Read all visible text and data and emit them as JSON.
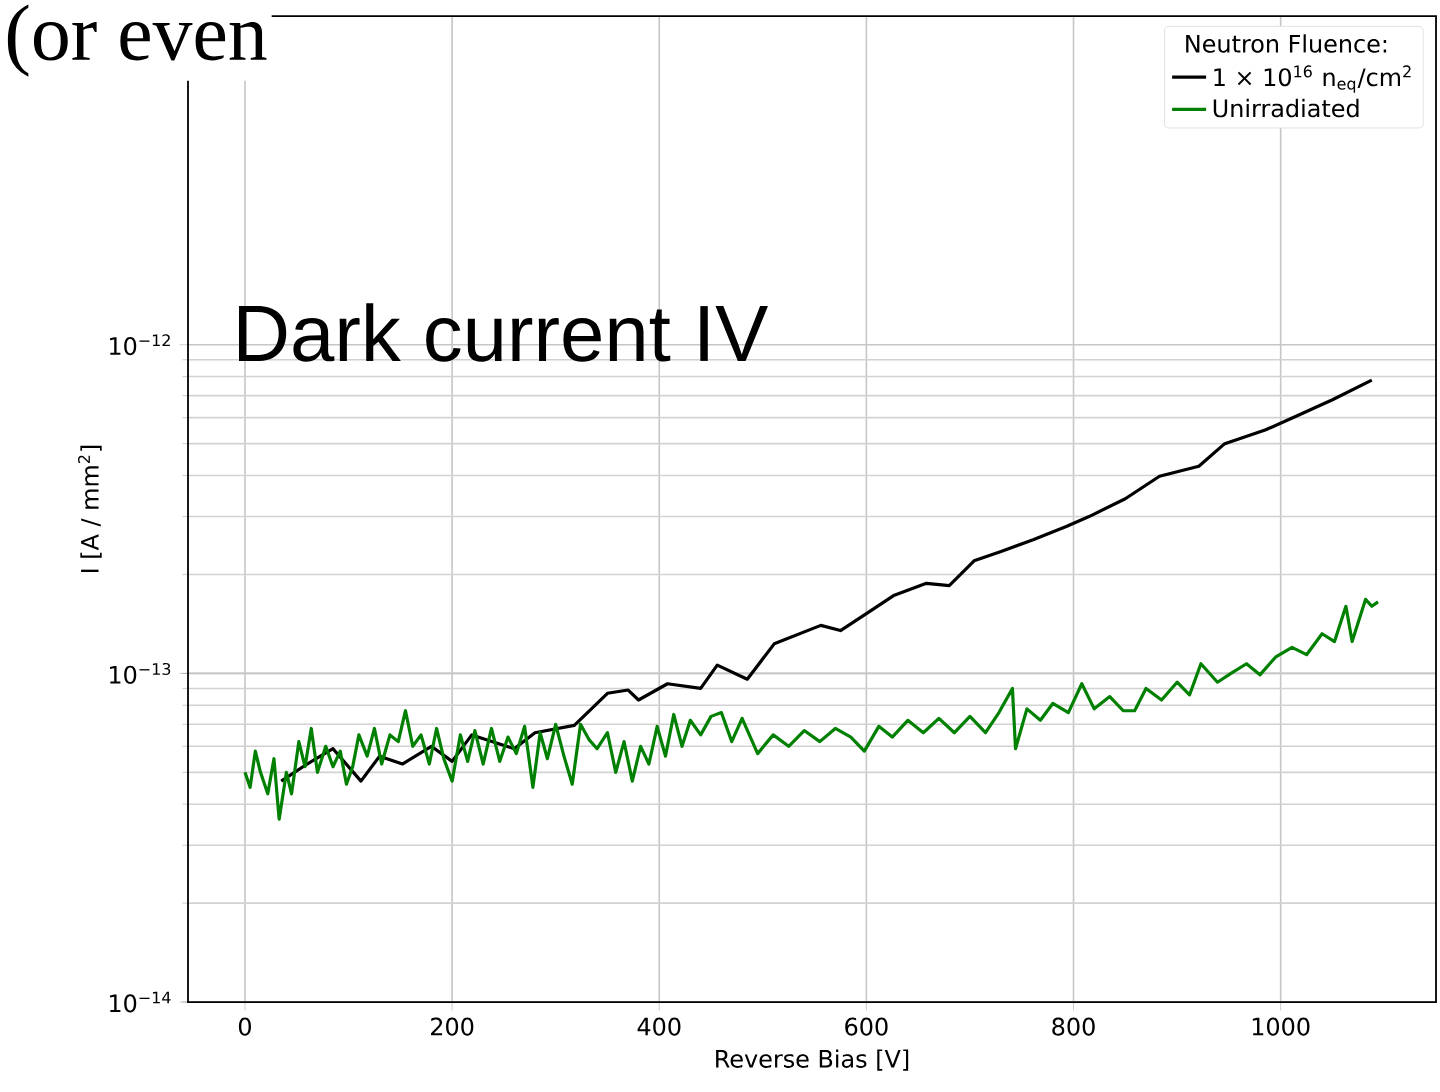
{
  "chart_data": {
    "type": "line",
    "title": "Dark current IV",
    "xlabel": "Reverse Bias [V]",
    "ylabel": "I  [A / mm$^{2}$]",
    "legend_title": "Neutron Fluence:",
    "annotations": [
      "(or even"
    ],
    "log": "y",
    "grid": true,
    "legend": "top right",
    "line_style": "solid",
    "xlim": [
      -55,
      1150
    ],
    "xticks": [
      0,
      200,
      400,
      600,
      800,
      1000
    ],
    "ylim": [
      1e-14,
      1e-11
    ],
    "yticks": [
      {
        "value": 1e-14,
        "label": "10$^{−14}$"
      },
      {
        "value": 1e-13,
        "label": "10$^{−13}$"
      },
      {
        "value": 1e-12,
        "label": "10$^{−12}$"
      }
    ],
    "series": [
      {
        "name": "1 × 10$^{16}$ n$_{eq}$/cm$^{2}$",
        "color": "#000000",
        "x": [
          35,
          60,
          85,
          112,
          130,
          152,
          180,
          200,
          219,
          260,
          280,
          318,
          350,
          370,
          380,
          408,
          440,
          456,
          485,
          511,
          556,
          575,
          600,
          627,
          658,
          680,
          704,
          730,
          761,
          793,
          815,
          850,
          883,
          921,
          946,
          985,
          1017,
          1050,
          1088
        ],
        "values": [
          4.7e-14,
          5.3e-14,
          5.9e-14,
          4.7e-14,
          5.6e-14,
          5.3e-14,
          6e-14,
          5.4e-14,
          6.5e-14,
          5.9e-14,
          6.6e-14,
          6.95e-14,
          8.7e-14,
          8.9e-14,
          8.3e-14,
          9.3e-14,
          9e-14,
          1.06e-13,
          9.6e-14,
          1.23e-13,
          1.4e-13,
          1.35e-13,
          1.52e-13,
          1.73e-13,
          1.88e-13,
          1.85e-13,
          2.2e-13,
          2.35e-13,
          2.55e-13,
          2.8e-13,
          3e-13,
          3.4e-13,
          3.98e-13,
          4.27e-13,
          5e-13,
          5.5e-13,
          6.1e-13,
          6.8e-13,
          7.8e-13
        ]
      },
      {
        "name": "Unirradiated",
        "color": "#008000",
        "x": [
          0,
          5,
          10,
          15,
          22,
          28,
          33,
          40,
          45,
          52,
          58,
          64,
          70,
          78,
          85,
          92,
          98,
          104,
          110,
          118,
          125,
          132,
          140,
          148,
          155,
          162,
          170,
          178,
          185,
          192,
          200,
          208,
          215,
          222,
          230,
          238,
          246,
          254,
          262,
          270,
          278,
          285,
          292,
          300,
          308,
          316,
          324,
          332,
          340,
          350,
          358,
          366,
          374,
          382,
          390,
          398,
          406,
          414,
          422,
          430,
          440,
          450,
          460,
          470,
          480,
          495,
          510,
          525,
          540,
          555,
          570,
          585,
          598,
          612,
          625,
          640,
          655,
          670,
          685,
          700,
          715,
          728,
          741,
          744,
          755,
          768,
          780,
          795,
          808,
          820,
          835,
          848,
          859,
          870,
          885,
          900,
          912,
          923,
          939,
          952,
          967,
          980,
          995,
          1011,
          1025,
          1040,
          1052,
          1063,
          1069,
          1082,
          1088,
          1094
        ],
        "values": [
          5e-14,
          4.5e-14,
          5.8e-14,
          5e-14,
          4.3e-14,
          5.5e-14,
          3.6e-14,
          5e-14,
          4.3e-14,
          6.2e-14,
          5.2e-14,
          6.8e-14,
          5e-14,
          6e-14,
          5.2e-14,
          5.8e-14,
          4.6e-14,
          5.2e-14,
          6.5e-14,
          5.6e-14,
          6.8e-14,
          5.3e-14,
          6.5e-14,
          6.2e-14,
          7.7e-14,
          6e-14,
          6.5e-14,
          5.3e-14,
          6.8e-14,
          5.5e-14,
          4.7e-14,
          6.5e-14,
          5.4e-14,
          6.7e-14,
          5.3e-14,
          6.8e-14,
          5.4e-14,
          6.4e-14,
          5.7e-14,
          6.9e-14,
          4.5e-14,
          6.6e-14,
          5.5e-14,
          7e-14,
          5.6e-14,
          4.6e-14,
          7e-14,
          6.3e-14,
          5.9e-14,
          6.6e-14,
          5e-14,
          6.2e-14,
          4.7e-14,
          6e-14,
          5.3e-14,
          6.9e-14,
          5.6e-14,
          7.5e-14,
          6e-14,
          7.2e-14,
          6.5e-14,
          7.4e-14,
          7.6e-14,
          6.2e-14,
          7.3e-14,
          5.7e-14,
          6.5e-14,
          6e-14,
          6.7e-14,
          6.2e-14,
          6.8e-14,
          6.4e-14,
          5.8e-14,
          6.9e-14,
          6.4e-14,
          7.2e-14,
          6.6e-14,
          7.3e-14,
          6.6e-14,
          7.4e-14,
          6.6e-14,
          7.6e-14,
          9e-14,
          5.9e-14,
          7.8e-14,
          7.2e-14,
          8.1e-14,
          7.6e-14,
          9.3e-14,
          7.8e-14,
          8.5e-14,
          7.7e-14,
          7.7e-14,
          9e-14,
          8.3e-14,
          9.4e-14,
          8.6e-14,
          1.07e-13,
          9.4e-14,
          1e-13,
          1.07e-13,
          9.9e-14,
          1.12e-13,
          1.2e-13,
          1.14e-13,
          1.32e-13,
          1.25e-13,
          1.6e-13,
          1.25e-13,
          1.68e-13,
          1.6e-13,
          1.65e-13
        ]
      }
    ]
  }
}
